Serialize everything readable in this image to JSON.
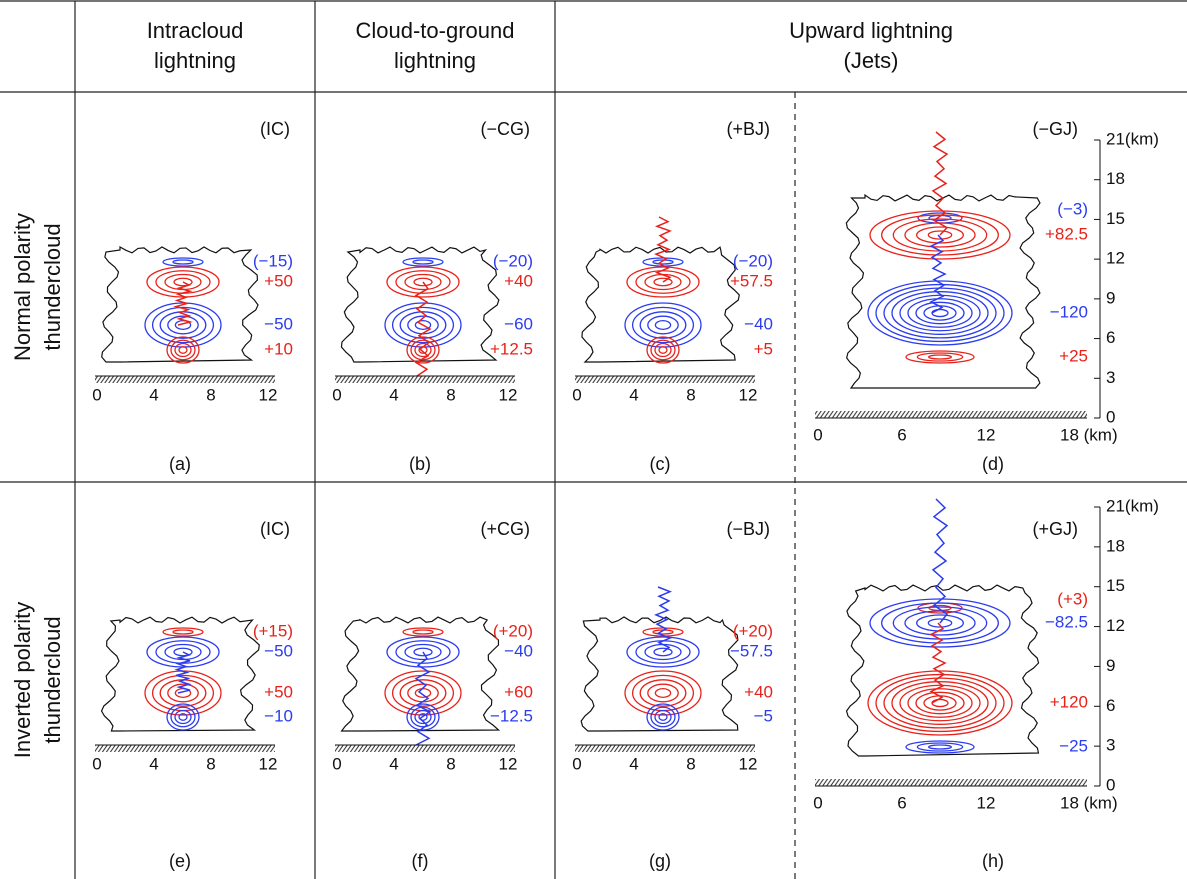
{
  "header": {
    "columns": [
      [
        "Intracloud",
        "lightning"
      ],
      [
        "Cloud-to-ground",
        "lightning"
      ],
      [
        "Upward lightning",
        "(Jets)"
      ]
    ],
    "rows": [
      [
        "Normal polarity",
        "thundercloud"
      ],
      [
        "Inverted polarity",
        "thundercloud"
      ]
    ]
  },
  "panels": [
    {
      "tag": "(IC)",
      "caption": "(a)",
      "xticks": [
        0,
        4,
        8,
        12
      ],
      "charges": [
        {
          "text": "(−15)",
          "color": "#2b3cf0"
        },
        {
          "text": "+50",
          "color": "#e8221a"
        },
        {
          "text": "−50",
          "color": "#2b3cf0"
        },
        {
          "text": "+10",
          "color": "#e8221a"
        }
      ]
    },
    {
      "tag": "(−CG)",
      "caption": "(b)",
      "xticks": [
        0,
        4,
        8,
        12
      ],
      "charges": [
        {
          "text": "(−20)",
          "color": "#2b3cf0"
        },
        {
          "text": "+40",
          "color": "#e8221a"
        },
        {
          "text": "−60",
          "color": "#2b3cf0"
        },
        {
          "text": "+12.5",
          "color": "#e8221a"
        }
      ]
    },
    {
      "tag": "(+BJ)",
      "caption": "(c)",
      "xticks": [
        0,
        4,
        8,
        12
      ],
      "charges": [
        {
          "text": "(−20)",
          "color": "#2b3cf0"
        },
        {
          "text": "+57.5",
          "color": "#e8221a"
        },
        {
          "text": "−40",
          "color": "#2b3cf0"
        },
        {
          "text": "+5",
          "color": "#e8221a"
        }
      ]
    },
    {
      "tag": "(−GJ)",
      "caption": "(d)",
      "xticks": [
        0,
        6,
        12,
        {
          "value": 18,
          "label": "18 (km)"
        }
      ],
      "yticks": [
        0,
        3,
        6,
        9,
        12,
        15,
        18,
        {
          "value": 21,
          "label": "21(km)"
        }
      ],
      "charges": [
        {
          "text": "(−3)",
          "color": "#2b3cf0"
        },
        {
          "text": "+82.5",
          "color": "#e8221a"
        },
        {
          "text": "−120",
          "color": "#2b3cf0"
        },
        {
          "text": "+25",
          "color": "#e8221a"
        }
      ]
    },
    {
      "tag": "(IC)",
      "caption": "(e)",
      "xticks": [
        0,
        4,
        8,
        12
      ],
      "charges": [
        {
          "text": "(+15)",
          "color": "#e8221a"
        },
        {
          "text": "−50",
          "color": "#2b3cf0"
        },
        {
          "text": "+50",
          "color": "#e8221a"
        },
        {
          "text": "−10",
          "color": "#2b3cf0"
        }
      ]
    },
    {
      "tag": "(+CG)",
      "caption": "(f)",
      "xticks": [
        0,
        4,
        8,
        12
      ],
      "charges": [
        {
          "text": "(+20)",
          "color": "#e8221a"
        },
        {
          "text": "−40",
          "color": "#2b3cf0"
        },
        {
          "text": "+60",
          "color": "#e8221a"
        },
        {
          "text": "−12.5",
          "color": "#2b3cf0"
        }
      ]
    },
    {
      "tag": "(−BJ)",
      "caption": "(g)",
      "xticks": [
        0,
        4,
        8,
        12
      ],
      "charges": [
        {
          "text": "(+20)",
          "color": "#e8221a"
        },
        {
          "text": "−57.5",
          "color": "#2b3cf0"
        },
        {
          "text": "+40",
          "color": "#e8221a"
        },
        {
          "text": "−5",
          "color": "#2b3cf0"
        }
      ]
    },
    {
      "tag": "(+GJ)",
      "caption": "(h)",
      "xticks": [
        0,
        6,
        12,
        {
          "value": 18,
          "label": "18 (km)"
        }
      ],
      "yticks": [
        0,
        3,
        6,
        9,
        12,
        15,
        18,
        {
          "value": 21,
          "label": "21(km)"
        }
      ],
      "charges": [
        {
          "text": "(+3)",
          "color": "#e8221a"
        },
        {
          "text": "−82.5",
          "color": "#2b3cf0"
        },
        {
          "text": "+120",
          "color": "#e8221a"
        },
        {
          "text": "−25",
          "color": "#2b3cf0"
        }
      ]
    }
  ]
}
